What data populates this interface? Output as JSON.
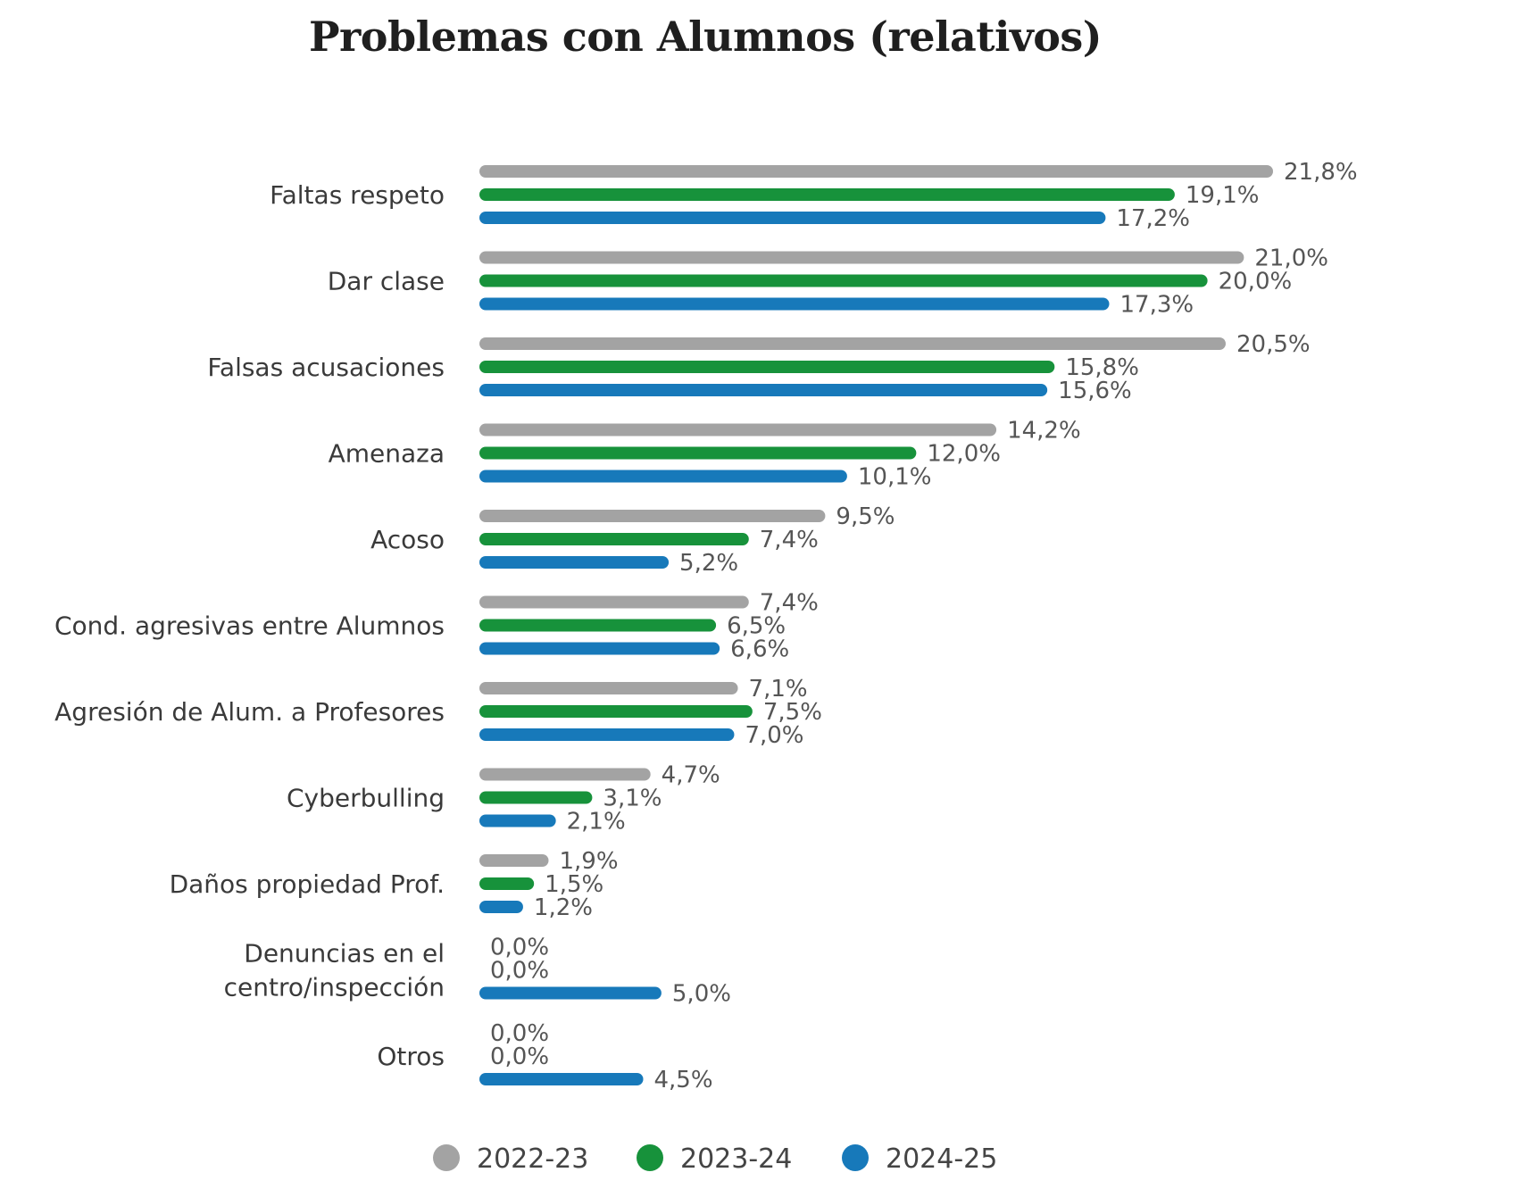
{
  "chart_data": {
    "type": "bar",
    "orientation": "horizontal",
    "title": "Problemas con Alumnos (relativos)",
    "categories": [
      [
        "Faltas respeto"
      ],
      [
        "Dar clase"
      ],
      [
        "Falsas acusaciones"
      ],
      [
        "Amenaza"
      ],
      [
        "Acoso"
      ],
      [
        "Cond. agresivas entre Alumnos"
      ],
      [
        "Agresión de Alum. a Profesores"
      ],
      [
        "Cyberbulling"
      ],
      [
        "Daños propiedad Prof."
      ],
      [
        "Denuncias en el",
        "centro/inspección"
      ],
      [
        "Otros"
      ]
    ],
    "series": [
      {
        "name": "2022-23",
        "color": "#a3a3a3",
        "values": [
          21.8,
          21.0,
          20.5,
          14.2,
          9.5,
          7.4,
          7.1,
          4.7,
          1.9,
          0.0,
          0.0
        ],
        "labels": [
          "21,8%",
          "21,0%",
          "20,5%",
          "14,2%",
          "9,5%",
          "7,4%",
          "7,1%",
          "4,7%",
          "1,9%",
          "0,0%",
          "0,0%"
        ]
      },
      {
        "name": "2023-24",
        "color": "#17923b",
        "values": [
          19.1,
          20.0,
          15.8,
          12.0,
          7.4,
          6.5,
          7.5,
          3.1,
          1.5,
          0.0,
          0.0
        ],
        "labels": [
          "19,1%",
          "20,0%",
          "15,8%",
          "12,0%",
          "7,4%",
          "6,5%",
          "7,5%",
          "3,1%",
          "1,5%",
          "0,0%",
          "0,0%"
        ]
      },
      {
        "name": "2024-25",
        "color": "#1779ba",
        "values": [
          17.2,
          17.3,
          15.6,
          10.1,
          5.2,
          6.6,
          7.0,
          2.1,
          1.2,
          5.0,
          4.5
        ],
        "labels": [
          "17,2%",
          "17,3%",
          "15,6%",
          "10,1%",
          "5,2%",
          "6,6%",
          "7,0%",
          "2,1%",
          "1,2%",
          "5,0%",
          "4,5%"
        ]
      }
    ],
    "legend_position": "bottom",
    "grid": false,
    "xlim": [
      0,
      21.8
    ]
  }
}
